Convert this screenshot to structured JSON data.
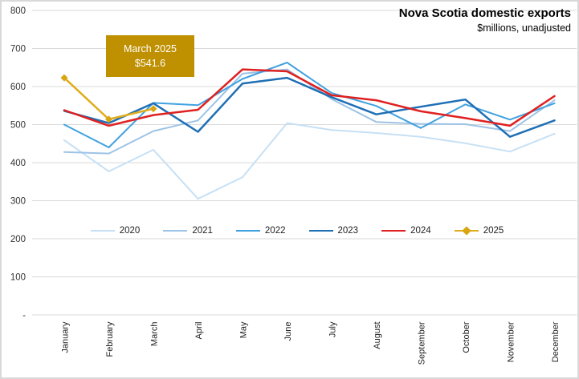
{
  "title": "Nova Scotia domestic exports",
  "subtitle": "$millions, unadjusted",
  "annotation": {
    "line1": "March 2025",
    "line2": "$541.6",
    "bg_color": "#BF9000",
    "text_color": "#FFFFFF"
  },
  "colors": {
    "gridline": "#D9D9D9",
    "axis_text": "#333333",
    "frame_border": "#D9D9D9"
  },
  "chart_data": {
    "type": "line",
    "title": "Nova Scotia domestic exports",
    "subtitle": "$millions, unadjusted",
    "xlabel": "",
    "ylabel": "",
    "ylim": [
      0,
      800
    ],
    "y_tick_step": 100,
    "y_tick_labels": [
      "800",
      "700",
      "600",
      "500",
      "400",
      "300",
      "200",
      "100",
      "-"
    ],
    "grid": true,
    "legend_position": "inside-lower-middle",
    "categories": [
      "January",
      "February",
      "March",
      "April",
      "May",
      "June",
      "July",
      "August",
      "September",
      "October",
      "November",
      "December"
    ],
    "series": [
      {
        "name": "2020",
        "color": "#C7E0F4",
        "marker": "none",
        "values": [
          459,
          377,
          434,
          305,
          362,
          504,
          486,
          478,
          468,
          451,
          429,
          476
        ]
      },
      {
        "name": "2021",
        "color": "#9DC3E6",
        "marker": "none",
        "values": [
          428,
          424,
          483,
          511,
          634,
          645,
          567,
          507,
          502,
          501,
          483,
          564
        ]
      },
      {
        "name": "2022",
        "color": "#41A1E0",
        "marker": "none",
        "values": [
          500,
          440,
          557,
          551,
          620,
          663,
          583,
          549,
          491,
          553,
          513,
          556
        ]
      },
      {
        "name": "2023",
        "color": "#1F6FB5",
        "marker": "none",
        "values": [
          536,
          504,
          556,
          481,
          608,
          623,
          572,
          527,
          547,
          566,
          468,
          511
        ]
      },
      {
        "name": "2024",
        "color": "#E02020",
        "marker": "none",
        "values": [
          538,
          497,
          525,
          539,
          645,
          640,
          577,
          564,
          535,
          517,
          497,
          575
        ]
      },
      {
        "name": "2025",
        "color": "#E0AC1E",
        "marker": "diamond",
        "marker_color": "#D9A514",
        "values": [
          623,
          514,
          541.6
        ]
      }
    ]
  }
}
